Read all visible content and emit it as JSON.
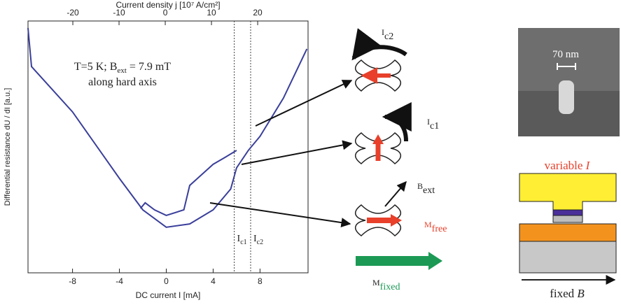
{
  "chart_data": {
    "type": "line",
    "x_label": "DC current I [mA]",
    "x2_label": "Current density j [10⁷ A/cm²]",
    "y_label": "Differential resistance dU / dI [a.u.]",
    "annotation": [
      "T=5 K; B",
      "ext",
      " = 7.9  mT",
      "along hard axis"
    ],
    "xlim": [
      -11.8,
      12.1
    ],
    "xticks": [
      -8,
      -4,
      0,
      4,
      8
    ],
    "x2lim": [
      -29.7,
      30.9
    ],
    "x2ticks": [
      -20,
      -10,
      0,
      10,
      20
    ],
    "ylim": [
      0,
      10
    ],
    "color": "#3a3f9a",
    "series": [
      {
        "x": [
          -11.8,
          -11.5,
          -8,
          -4,
          -2,
          0,
          2,
          4,
          5.5,
          6,
          7,
          8,
          10,
          12
        ],
        "values": [
          9.72,
          8.19,
          6.39,
          3.75,
          2.5,
          1.81,
          1.94,
          2.5,
          3.33,
          4.17,
          4.86,
          5.42,
          6.94,
          8.89
        ]
      },
      {
        "x": [
          -2.2,
          -1.8,
          -1,
          0,
          1.5,
          2,
          4,
          5,
          6
        ],
        "values": [
          2.56,
          2.78,
          2.5,
          2.28,
          2.5,
          3.47,
          4.31,
          4.58,
          4.86
        ]
      }
    ],
    "markers": [
      {
        "x": 5.8,
        "label": "I",
        "sub": "c1"
      },
      {
        "x": 7.2,
        "label": "I",
        "sub": "c2"
      }
    ]
  },
  "diagram": {
    "ic2": [
      "I",
      "c2"
    ],
    "ic1": [
      "I",
      "c1"
    ],
    "bext": [
      "B",
      "ext"
    ],
    "mfree": [
      "M",
      "free"
    ],
    "mfixed": [
      "M",
      "fixed"
    ],
    "scale": "70 nm",
    "variable": [
      "variable ",
      "I"
    ],
    "fixed": [
      "fixed ",
      "B"
    ]
  }
}
